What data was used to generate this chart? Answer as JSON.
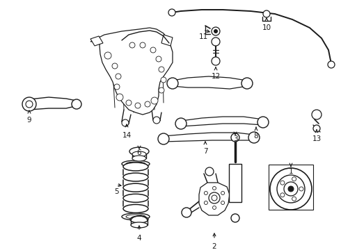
{
  "background_color": "#ffffff",
  "line_color": "#1a1a1a",
  "fig_width": 4.9,
  "fig_height": 3.6,
  "dpi": 100,
  "label_fontsize": 7.5
}
